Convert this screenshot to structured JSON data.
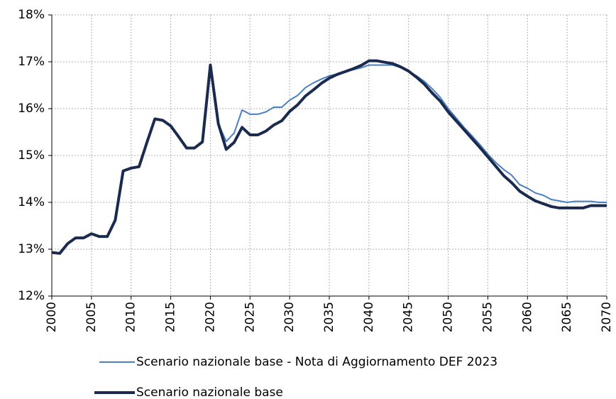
{
  "chart_data": {
    "type": "line",
    "x": [
      2000,
      2001,
      2002,
      2003,
      2004,
      2005,
      2006,
      2007,
      2008,
      2009,
      2010,
      2011,
      2012,
      2013,
      2014,
      2015,
      2016,
      2017,
      2018,
      2019,
      2020,
      2021,
      2022,
      2023,
      2024,
      2025,
      2026,
      2027,
      2028,
      2029,
      2030,
      2031,
      2032,
      2033,
      2034,
      2035,
      2036,
      2037,
      2038,
      2039,
      2040,
      2041,
      2042,
      2043,
      2044,
      2045,
      2046,
      2047,
      2048,
      2049,
      2050,
      2051,
      2052,
      2053,
      2054,
      2055,
      2056,
      2057,
      2058,
      2059,
      2060,
      2061,
      2062,
      2063,
      2064,
      2065,
      2066,
      2067,
      2068,
      2069,
      2070
    ],
    "series": [
      {
        "name": "Scenario nazionale base - Nota di Aggiornamento DEF 2023",
        "color": "#4a7fc1",
        "width": 2,
        "values": [
          12.93,
          12.91,
          13.12,
          13.24,
          13.24,
          13.33,
          13.27,
          13.27,
          13.62,
          14.67,
          14.73,
          14.76,
          15.28,
          15.78,
          15.75,
          15.63,
          15.4,
          15.16,
          15.16,
          15.29,
          16.93,
          15.68,
          15.3,
          15.48,
          15.97,
          15.88,
          15.88,
          15.93,
          16.03,
          16.03,
          16.18,
          16.28,
          16.45,
          16.55,
          16.63,
          16.7,
          16.74,
          16.78,
          16.83,
          16.87,
          16.93,
          16.93,
          16.93,
          16.93,
          16.88,
          16.8,
          16.7,
          16.58,
          16.42,
          16.24,
          16.0,
          15.8,
          15.6,
          15.42,
          15.23,
          15.03,
          14.85,
          14.7,
          14.58,
          14.38,
          14.3,
          14.2,
          14.15,
          14.06,
          14.03,
          14.0,
          14.02,
          14.02,
          14.02,
          14.0,
          14.0
        ]
      },
      {
        "name": "Scenario nazionale base",
        "color": "#1a2b4f",
        "width": 4,
        "values": [
          12.93,
          12.91,
          13.12,
          13.24,
          13.24,
          13.33,
          13.27,
          13.27,
          13.62,
          14.67,
          14.73,
          14.76,
          15.28,
          15.78,
          15.75,
          15.63,
          15.4,
          15.16,
          15.16,
          15.29,
          16.93,
          15.68,
          15.13,
          15.28,
          15.6,
          15.44,
          15.44,
          15.52,
          15.65,
          15.74,
          15.94,
          16.08,
          16.27,
          16.4,
          16.54,
          16.65,
          16.73,
          16.79,
          16.85,
          16.92,
          17.02,
          17.02,
          16.99,
          16.96,
          16.89,
          16.8,
          16.67,
          16.52,
          16.33,
          16.16,
          15.93,
          15.74,
          15.55,
          15.36,
          15.17,
          14.97,
          14.77,
          14.57,
          14.42,
          14.24,
          14.13,
          14.03,
          13.97,
          13.91,
          13.88,
          13.88,
          13.88,
          13.88,
          13.93,
          13.93,
          13.93
        ]
      }
    ],
    "xlim": [
      2000,
      2070
    ],
    "xticks": [
      2000,
      2005,
      2010,
      2015,
      2020,
      2025,
      2030,
      2035,
      2040,
      2045,
      2050,
      2055,
      2060,
      2065,
      2070
    ],
    "ylim": [
      12,
      18
    ],
    "yticks": [
      {
        "value": 12,
        "label": "12%"
      },
      {
        "value": 13,
        "label": "13%"
      },
      {
        "value": 14,
        "label": "14%"
      },
      {
        "value": 15,
        "label": "15%"
      },
      {
        "value": 16,
        "label": "16%"
      },
      {
        "value": 17,
        "label": "17%"
      },
      {
        "value": 18,
        "label": "18%"
      }
    ],
    "grid": true,
    "legend": "bottom"
  }
}
